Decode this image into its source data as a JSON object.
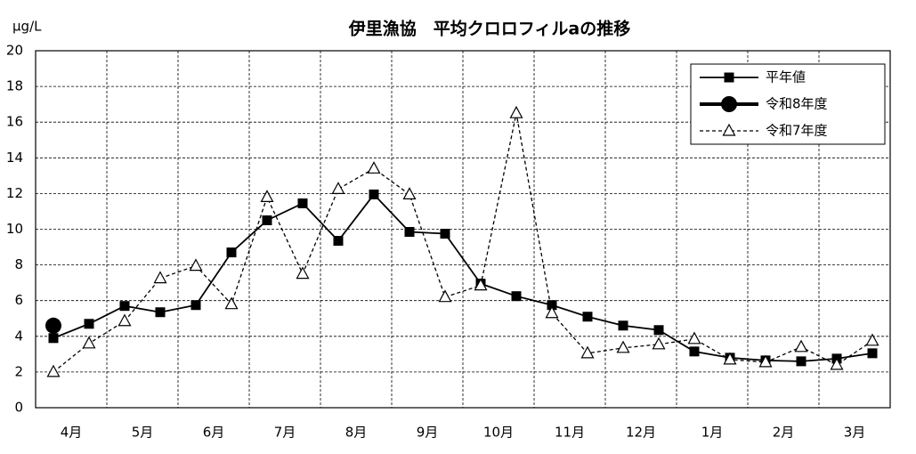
{
  "chart_data": {
    "type": "line",
    "title": "伊里漁協　平均クロロフィルaの推移",
    "y_unit": "μg/L",
    "categories": [
      "4月",
      null,
      "5月",
      null,
      "6月",
      null,
      "7月",
      null,
      "8月",
      null,
      "9月",
      null,
      "10月",
      null,
      "11月",
      null,
      "12月",
      null,
      "1月",
      null,
      "2月",
      null,
      "3月",
      null
    ],
    "ylim": [
      0,
      20
    ],
    "yticks": [
      0,
      2,
      4,
      6,
      8,
      10,
      12,
      14,
      16,
      18,
      20
    ],
    "grid": true,
    "legend": "top-right",
    "series": [
      {
        "name": "平年値",
        "color": "#000000",
        "marker": "square",
        "line_style": "solid",
        "values": [
          3.9,
          4.7,
          5.7,
          5.35,
          5.75,
          8.7,
          10.5,
          11.45,
          9.35,
          11.95,
          9.85,
          9.75,
          6.95,
          6.25,
          5.75,
          5.1,
          4.6,
          4.35,
          3.15,
          2.8,
          2.65,
          2.6,
          2.75,
          3.05
        ]
      },
      {
        "name": "令和8年度",
        "color": "#000000",
        "marker": "circle",
        "line_style": "bold",
        "values": [
          4.6,
          null,
          null,
          null,
          null,
          null,
          null,
          null,
          null,
          null,
          null,
          null,
          null,
          null,
          null,
          null,
          null,
          null,
          null,
          null,
          null,
          null,
          null,
          null
        ]
      },
      {
        "name": "令和7年度",
        "color": "#000000",
        "marker": "triangle",
        "line_style": "dashed",
        "values": [
          2.0,
          3.6,
          4.85,
          7.25,
          7.95,
          5.8,
          11.8,
          7.5,
          12.25,
          13.4,
          11.95,
          6.2,
          6.85,
          16.5,
          5.3,
          3.05,
          3.35,
          3.55,
          3.85,
          2.7,
          2.55,
          3.4,
          2.4,
          3.75
        ]
      }
    ]
  }
}
